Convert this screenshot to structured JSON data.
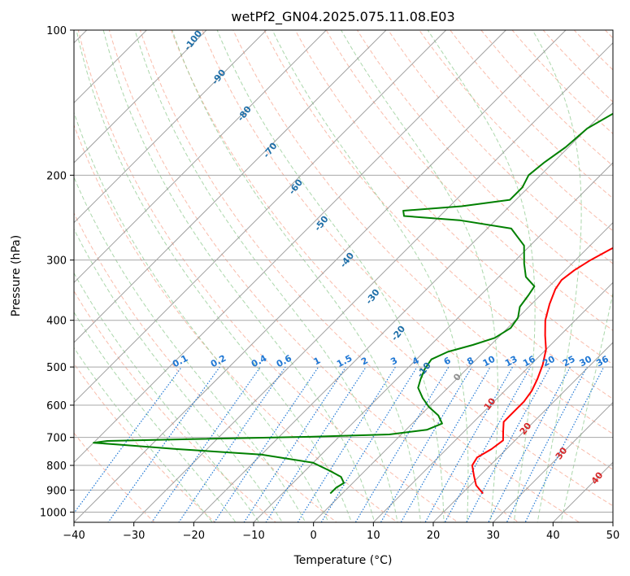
{
  "chart_data": {
    "type": "skew-t",
    "title": "wetPf2_GN04.2025.075.11.08.E03",
    "xlabel": "Temperature (°C)",
    "ylabel": "Pressure (hPa)",
    "xlim": [
      -40,
      50
    ],
    "ylim": [
      1050,
      100
    ],
    "y_scale": "log",
    "grid": true,
    "x_ticks": [
      -40,
      -30,
      -20,
      -10,
      0,
      10,
      20,
      30,
      40,
      50
    ],
    "x_tick_labels": [
      "−40",
      "−30",
      "−20",
      "−10",
      "0",
      "10",
      "20",
      "30",
      "40",
      "50"
    ],
    "y_ticks": [
      100,
      200,
      300,
      400,
      500,
      600,
      700,
      800,
      900,
      1000
    ],
    "y_tick_labels": [
      "100",
      "200",
      "300",
      "400",
      "500",
      "600",
      "700",
      "800",
      "900",
      "1000"
    ],
    "series": [
      {
        "color": "#ff0000",
        "points": [
          [
            23.5,
            915
          ],
          [
            21,
            880
          ],
          [
            19,
            840
          ],
          [
            17,
            800
          ],
          [
            16.5,
            770
          ],
          [
            17.5,
            740
          ],
          [
            18,
            710
          ],
          [
            16.5,
            680
          ],
          [
            15,
            650
          ],
          [
            15,
            620
          ],
          [
            15,
            590
          ],
          [
            14.5,
            560
          ],
          [
            13.5,
            530
          ],
          [
            12,
            495
          ],
          [
            10,
            460
          ],
          [
            7.5,
            430
          ],
          [
            5,
            400
          ],
          [
            3,
            370
          ],
          [
            1.5,
            345
          ],
          [
            1,
            330
          ],
          [
            1.5,
            315
          ],
          [
            2.5,
            300
          ],
          [
            4,
            285
          ],
          [
            6,
            270
          ],
          [
            8,
            258
          ],
          [
            11,
            248
          ],
          [
            13.5,
            240
          ],
          [
            14,
            225
          ],
          [
            13.5,
            205
          ],
          [
            13,
            180
          ],
          [
            12,
            160
          ],
          [
            9.5,
            145
          ],
          [
            7,
            135
          ],
          [
            5.5,
            125
          ],
          [
            4.5,
            115
          ],
          [
            4,
            108
          ],
          [
            3.8,
            100
          ]
        ]
      },
      {
        "color": "#008000",
        "points": [
          [
            -2,
            915
          ],
          [
            -2,
            890
          ],
          [
            -1.5,
            870
          ],
          [
            -3,
            845
          ],
          [
            -6,
            820
          ],
          [
            -10,
            790
          ],
          [
            -20,
            760
          ],
          [
            -35,
            740
          ],
          [
            -45,
            725
          ],
          [
            -50,
            718
          ],
          [
            -48,
            712
          ],
          [
            -35,
            706
          ],
          [
            -15,
            698
          ],
          [
            -2,
            690
          ],
          [
            3.5,
            675
          ],
          [
            5,
            655
          ],
          [
            3,
            630
          ],
          [
            0,
            605
          ],
          [
            -2.5,
            580
          ],
          [
            -5,
            552
          ],
          [
            -6,
            530
          ],
          [
            -7,
            505
          ],
          [
            -7.5,
            482
          ],
          [
            -6,
            465
          ],
          [
            -3,
            450
          ],
          [
            -0.5,
            435
          ],
          [
            0.5,
            415
          ],
          [
            0,
            395
          ],
          [
            -1.5,
            375
          ],
          [
            -2,
            355
          ],
          [
            -2.5,
            340
          ],
          [
            -5.5,
            325
          ],
          [
            -8,
            305
          ],
          [
            -11,
            280
          ],
          [
            -16,
            258
          ],
          [
            -26,
            248
          ],
          [
            -36,
            243
          ],
          [
            -37,
            237
          ],
          [
            -28,
            232
          ],
          [
            -21,
            225
          ],
          [
            -21,
            212
          ],
          [
            -22,
            200
          ],
          [
            -21.5,
            188
          ],
          [
            -20.5,
            175
          ],
          [
            -20,
            160
          ],
          [
            -18,
            148
          ],
          [
            -16,
            140
          ],
          [
            -13,
            132
          ],
          [
            -11,
            124
          ],
          [
            -9.5,
            117
          ],
          [
            -8,
            111
          ],
          [
            -7.5,
            105
          ],
          [
            -7,
            100
          ]
        ]
      }
    ],
    "dry_adiabat_labels": [
      "-100",
      "-90",
      "-80",
      "-70",
      "-60",
      "-50",
      "-40",
      "-30",
      "-20",
      "-10",
      "0",
      "10",
      "20",
      "30",
      "40"
    ],
    "mixing_ratio_labels": [
      "0.1",
      "0.2",
      "0.4",
      "0.6",
      "1",
      "1.5",
      "2",
      "3",
      "4",
      "6",
      "8",
      "10",
      "13",
      "16",
      "20",
      "25",
      "30",
      "36"
    ],
    "colors": {
      "temperature": "#ff0000",
      "dewpoint": "#008000",
      "dry_adiabat": "#f7a68f",
      "moist_adiabat": "#8fc98f",
      "mixing_ratio": "#1f77d4",
      "isotherm": "#909090",
      "isobar": "#a8a8a8",
      "adiabat_label_blue": "#1f6fa8",
      "adiabat_label_red": "#d62728"
    }
  }
}
